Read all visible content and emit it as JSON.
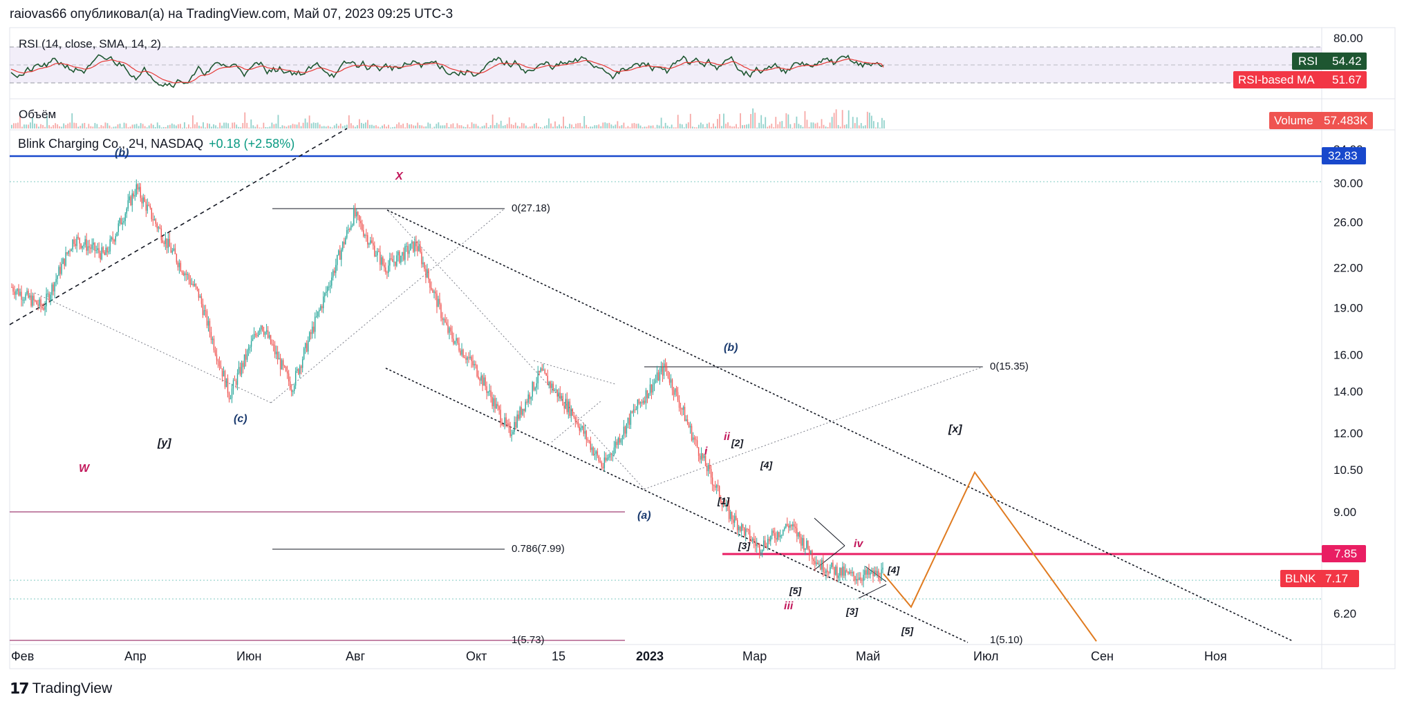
{
  "header": {
    "publisher_line": "raiovas66 опубликовал(а) на TradingView.com, Май 07, 2023 09:25 UTC-3"
  },
  "rsi_pane": {
    "legend": "RSI (14, close, SMA, 14, 2)",
    "axis_ticks": [
      "80.00"
    ],
    "rsi_badge": {
      "name": "RSI",
      "value": "54.42",
      "color": "#1e5631"
    },
    "ma_badge": {
      "name": "RSI-based MA",
      "value": "51.67",
      "color": "#f23645"
    },
    "band_color": "#7e57c2"
  },
  "volume_pane": {
    "legend": "Объём",
    "badge": {
      "name": "Volume",
      "value": "57.483K",
      "color": "#ef5350"
    }
  },
  "main_pane": {
    "legend_symbol": "Blink Charging Co., 2Ч, NASDAQ",
    "legend_change": "+0.18 (+2.58%)",
    "hline_badge": {
      "value": "32.83",
      "color": "#1848cc"
    },
    "magenta_badge": {
      "value": "7.85",
      "color": "#e91e63"
    },
    "price_badge": {
      "name": "BLNK",
      "value": "7.17",
      "color": "#f23645"
    },
    "fib_labels": [
      "0(27.18)",
      "0.786(7.99)",
      "1(5.73)",
      "0(15.35)",
      "1(5.10)"
    ],
    "wave_labels": {
      "navy": [
        "(b)",
        "(c)",
        "(a)",
        "(b)"
      ],
      "black": [
        "[y]",
        "[x]",
        "[2]",
        "[4]",
        "[1]",
        "[3]",
        "[5]",
        "[4]",
        "[3]",
        "[5]"
      ],
      "magenta": [
        "W",
        "X",
        "ii",
        "i",
        "iv",
        "iii"
      ]
    }
  },
  "x_axis": {
    "labels": [
      "Фев",
      "Апр",
      "Июн",
      "Авг",
      "Окт",
      "15",
      "2023",
      "Мар",
      "Май",
      "Июл",
      "Сен",
      "Ноя"
    ]
  },
  "footer": {
    "brand": "TradingView"
  },
  "chart_data": {
    "type": "candlestick",
    "symbol": "BLNK",
    "interval": "2Ч",
    "exchange": "NASDAQ",
    "y_scale": "log",
    "y_ticks": [
      34.0,
      30.0,
      26.0,
      22.0,
      19.0,
      16.0,
      14.0,
      12.0,
      10.5,
      9.0,
      7.85,
      7.17,
      6.2
    ],
    "ylim": [
      5.3,
      34.5
    ],
    "x_ticks": [
      "Фев",
      "Апр",
      "Июн",
      "Авг",
      "Окт",
      "15",
      "2023",
      "Мар",
      "Май",
      "Июл",
      "Сен",
      "Ноя"
    ],
    "price_path": [
      {
        "t": "Фев",
        "p": 20.5
      },
      {
        "t": "Фев",
        "p": 19.0
      },
      {
        "t": "Фев",
        "p": 24.5
      },
      {
        "t": "Апр",
        "p": 23.0
      },
      {
        "t": "Апр",
        "p": 29.5
      },
      {
        "t": "Апр",
        "p": 24.0
      },
      {
        "t": "Июн",
        "p": 20.0
      },
      {
        "t": "Июн",
        "p": 13.8
      },
      {
        "t": "Июн",
        "p": 18.0
      },
      {
        "t": "Июн",
        "p": 14.2
      },
      {
        "t": "Авг",
        "p": 19.5
      },
      {
        "t": "Авг",
        "p": 26.8
      },
      {
        "t": "Авг",
        "p": 22.0
      },
      {
        "t": "Окт",
        "p": 24.0
      },
      {
        "t": "Окт",
        "p": 17.5
      },
      {
        "t": "Окт",
        "p": 15.0
      },
      {
        "t": "15",
        "p": 12.0
      },
      {
        "t": "15",
        "p": 15.0
      },
      {
        "t": "15",
        "p": 13.0
      },
      {
        "t": "2023",
        "p": 10.6
      },
      {
        "t": "2023",
        "p": 13.0
      },
      {
        "t": "2023",
        "p": 15.3
      },
      {
        "t": "Мар",
        "p": 11.5
      },
      {
        "t": "Мар",
        "p": 9.0
      },
      {
        "t": "Мар",
        "p": 7.9
      },
      {
        "t": "Мар",
        "p": 8.6
      },
      {
        "t": "Май",
        "p": 7.4
      },
      {
        "t": "Май",
        "p": 7.1
      },
      {
        "t": "Май",
        "p": 7.17
      }
    ],
    "forecast_path": [
      {
        "t": "Май",
        "p": 7.17
      },
      {
        "t": "Май",
        "p": 6.35
      },
      {
        "t": "Июл",
        "p": 10.4
      },
      {
        "t": "Сен",
        "p": 5.6
      }
    ],
    "horizontal_levels": [
      {
        "value": 32.83,
        "color": "#1848cc"
      },
      {
        "value": 7.85,
        "color": "#e91e63"
      },
      {
        "value": 27.18,
        "label": "0(27.18)"
      },
      {
        "value": 7.99,
        "label": "0.786(7.99)"
      },
      {
        "value": 5.73,
        "label": "1(5.73)"
      },
      {
        "value": 15.35,
        "label": "0(15.35)"
      }
    ],
    "last_price": 7.17,
    "change": "+0.18 (+2.58%)",
    "rsi": {
      "value": 54.42,
      "ma": 51.67,
      "upper_band": 80,
      "lower_band": 30
    },
    "volume": {
      "last": "57.483K"
    }
  }
}
